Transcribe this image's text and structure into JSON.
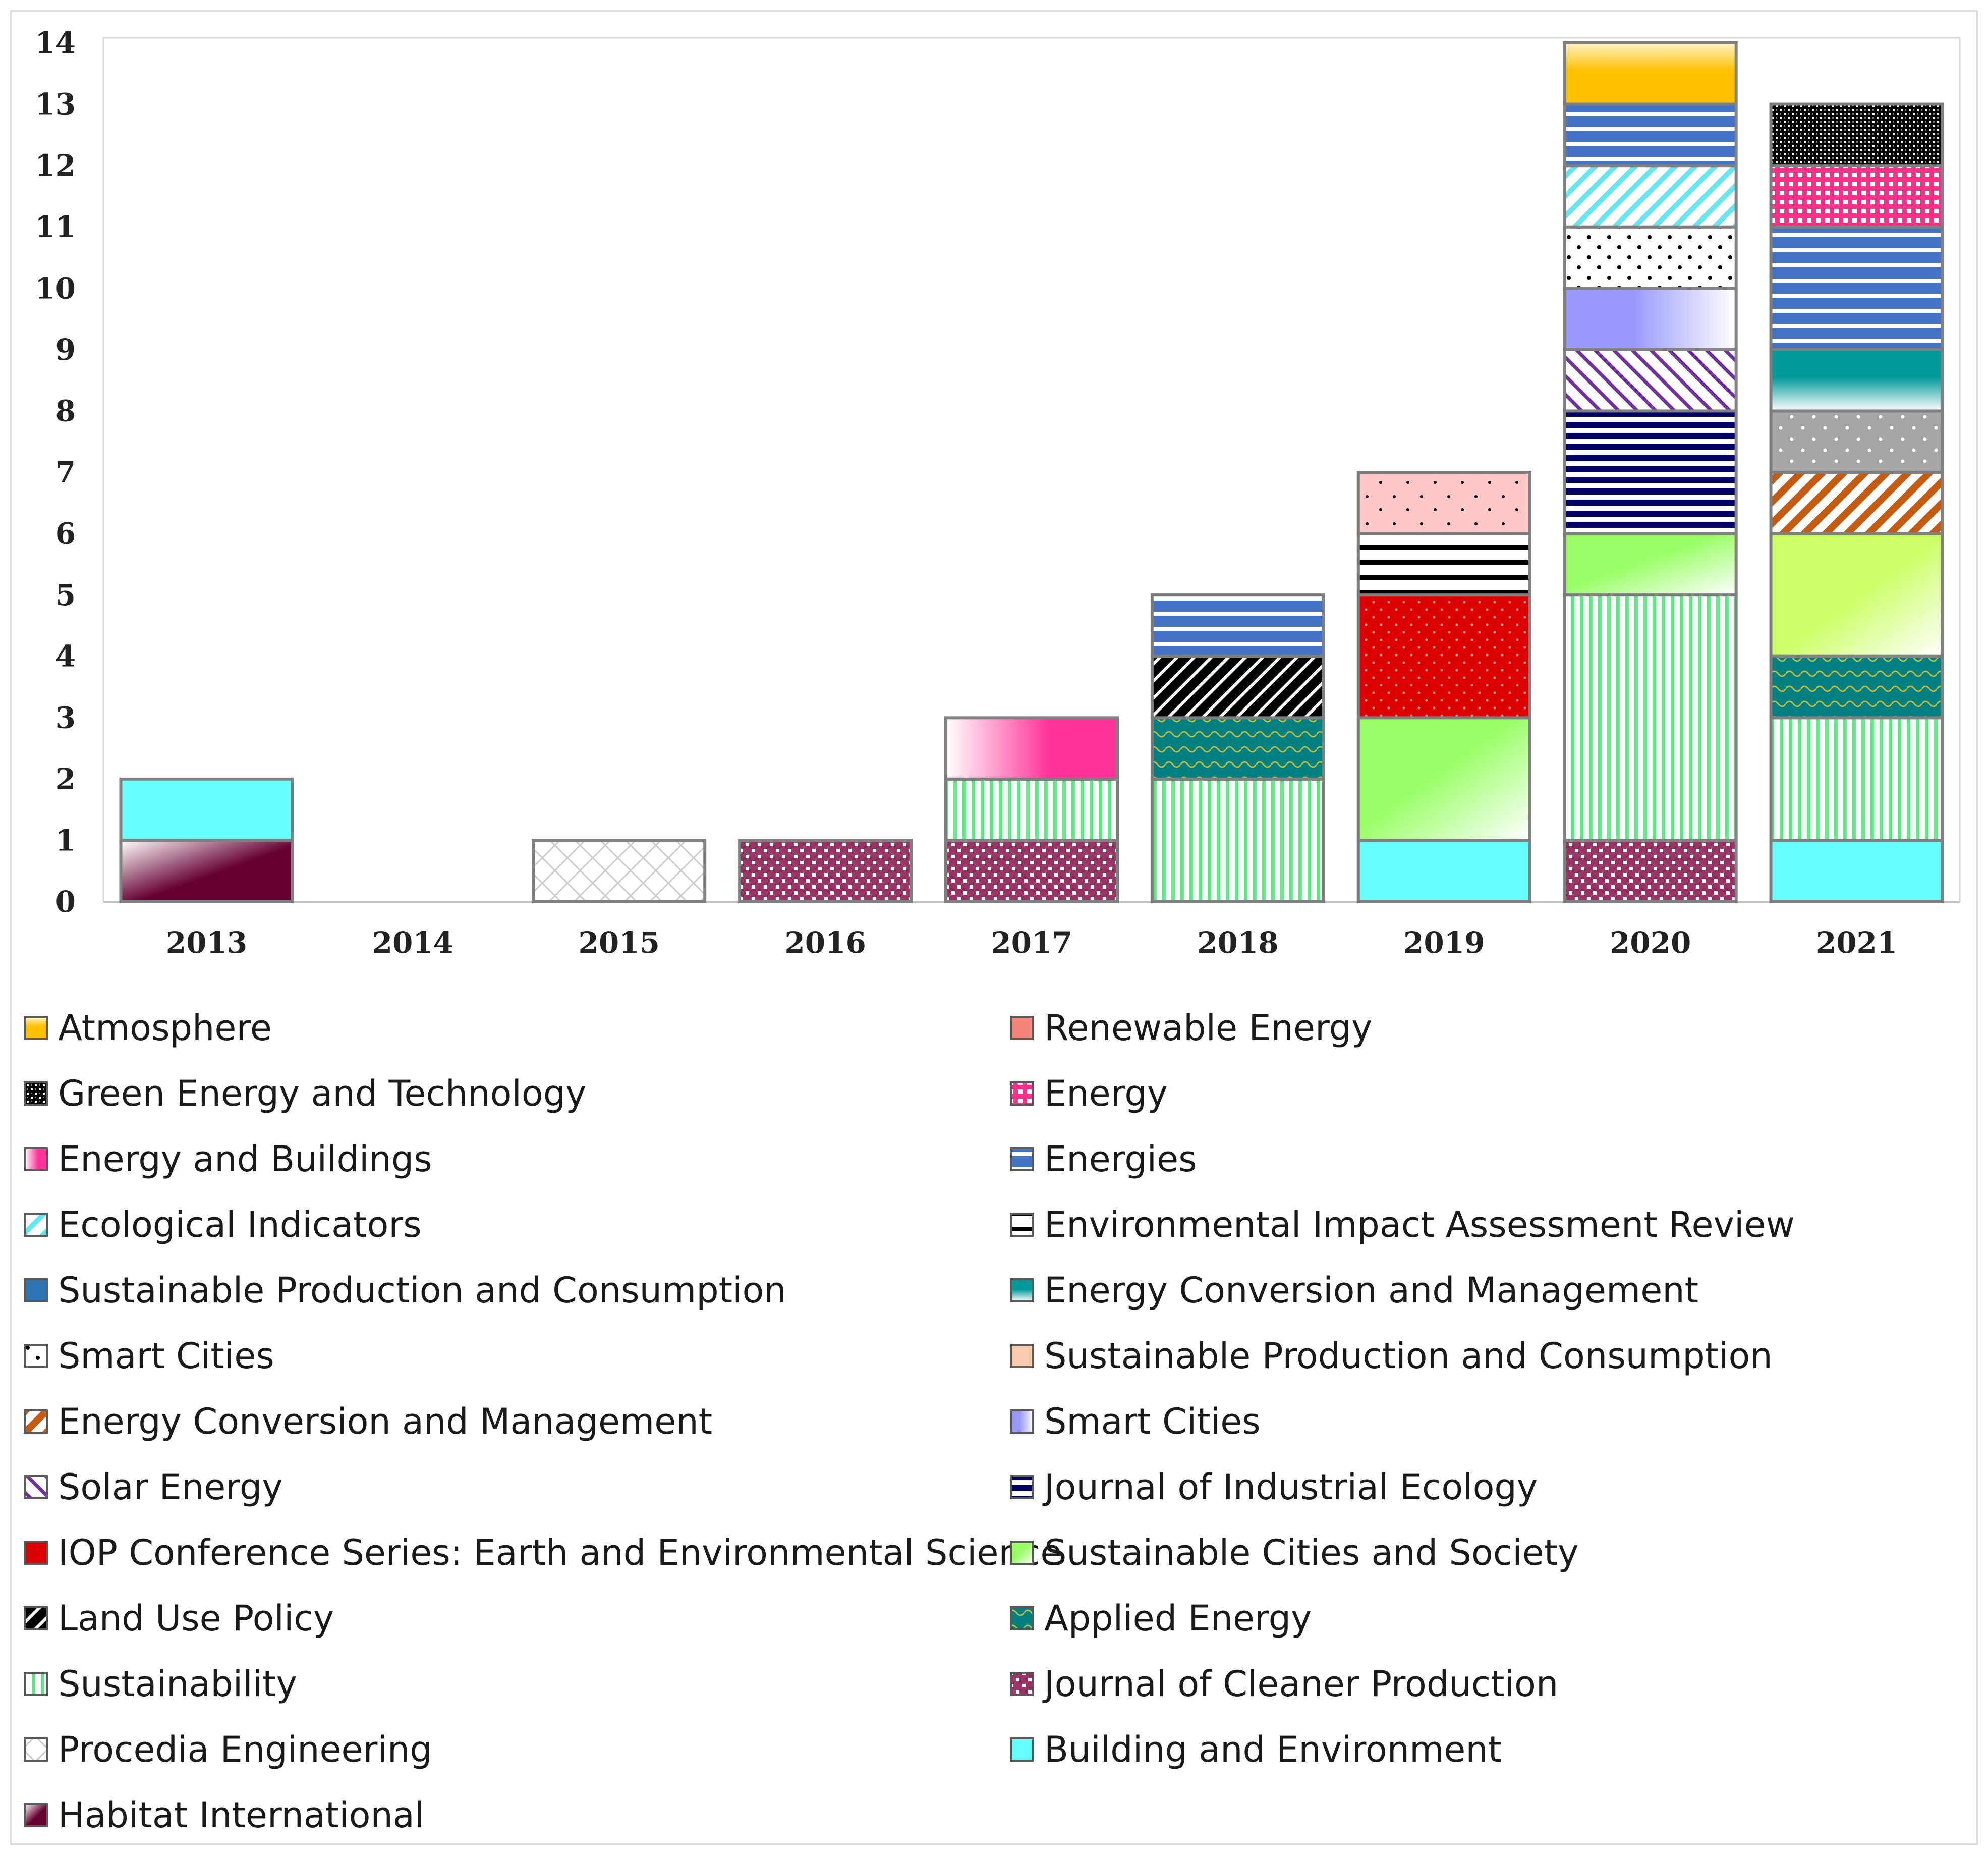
{
  "chart_data": {
    "type": "bar",
    "stacked": true,
    "title": "",
    "xlabel": "",
    "ylabel": "",
    "ylim": [
      0,
      14
    ],
    "y_ticks": [
      0,
      1,
      2,
      3,
      4,
      5,
      6,
      7,
      8,
      9,
      10,
      11,
      12,
      13,
      14
    ],
    "grid": false,
    "legend_position": "bottom",
    "categories": [
      "2013",
      "2014",
      "2015",
      "2016",
      "2017",
      "2018",
      "2019",
      "2020",
      "2021"
    ],
    "stacks": [
      [
        {
          "series": "Habitat International",
          "value": 1
        },
        {
          "series": "Building and Environment",
          "value": 1
        }
      ],
      [],
      [
        {
          "series": "Procedia Engineering",
          "value": 1
        }
      ],
      [
        {
          "series": "Journal of Cleaner Production",
          "value": 1
        }
      ],
      [
        {
          "series": "Journal of Cleaner Production",
          "value": 1
        },
        {
          "series": "Sustainability",
          "value": 1
        },
        {
          "series": "Energy and Buildings",
          "value": 1
        }
      ],
      [
        {
          "series": "Sustainability",
          "value": 2
        },
        {
          "series": "Applied Energy",
          "value": 1
        },
        {
          "series": "Land Use Policy",
          "value": 1
        },
        {
          "series": "Energies",
          "value": 1
        }
      ],
      [
        {
          "series": "Building and Environment",
          "value": 1
        },
        {
          "series": "Sustainable Cities and Society",
          "value": 2
        },
        {
          "series": "IOP Conference Series: Earth and Environmental Science",
          "value": 2
        },
        {
          "series": "Environmental Impact Assessment Review",
          "value": 1
        },
        {
          "series": "Renewable Energy",
          "value": 1
        }
      ],
      [
        {
          "series": "Journal of Cleaner Production",
          "value": 1
        },
        {
          "series": "Sustainability",
          "value": 4
        },
        {
          "series": "Sustainable Cities and Society",
          "value": 1
        },
        {
          "series": "Journal of Industrial Ecology",
          "value": 2
        },
        {
          "series": "Solar Energy",
          "value": 1
        },
        {
          "series": "Smart Cities",
          "value": 1
        },
        {
          "series": "Smart Cities",
          "value": 1
        },
        {
          "series": "Ecological Indicators",
          "value": 1
        },
        {
          "series": "Energies",
          "value": 1
        },
        {
          "series": "Atmosphere",
          "value": 1
        }
      ],
      [
        {
          "series": "Building and Environment",
          "value": 1
        },
        {
          "series": "Sustainability",
          "value": 2
        },
        {
          "series": "Applied Energy",
          "value": 1
        },
        {
          "series": "Sustainable Cities and Society",
          "value": 2
        },
        {
          "series": "Energy Conversion and Management",
          "value": 1
        },
        {
          "series": "Sustainable Production and Consumption",
          "value": 1
        },
        {
          "series": "Energy Conversion and Management",
          "value": 1
        },
        {
          "series": "Energies",
          "value": 2
        },
        {
          "series": "Energy",
          "value": 1
        },
        {
          "series": "Green Energy and Technology",
          "value": 1
        }
      ]
    ],
    "legend": [
      "Atmosphere",
      "Renewable Energy",
      "Green Energy and Technology",
      "Energy",
      "Energy and Buildings",
      "Energies",
      "Ecological Indicators",
      "Environmental Impact Assessment Review",
      "Sustainable Production and Consumption",
      "Energy Conversion and Management",
      "Smart Cities",
      "Sustainable Production and Consumption",
      "Energy Conversion and Management",
      "Smart Cities",
      "Solar Energy",
      "Journal of Industrial Ecology",
      "IOP Conference Series: Earth and Environmental Science",
      "Sustainable Cities and Society",
      "Land Use Policy",
      "Applied Energy",
      "Sustainability",
      "Journal of Cleaner Production",
      "Procedia Engineering",
      "Building and Environment",
      "Habitat International"
    ]
  }
}
